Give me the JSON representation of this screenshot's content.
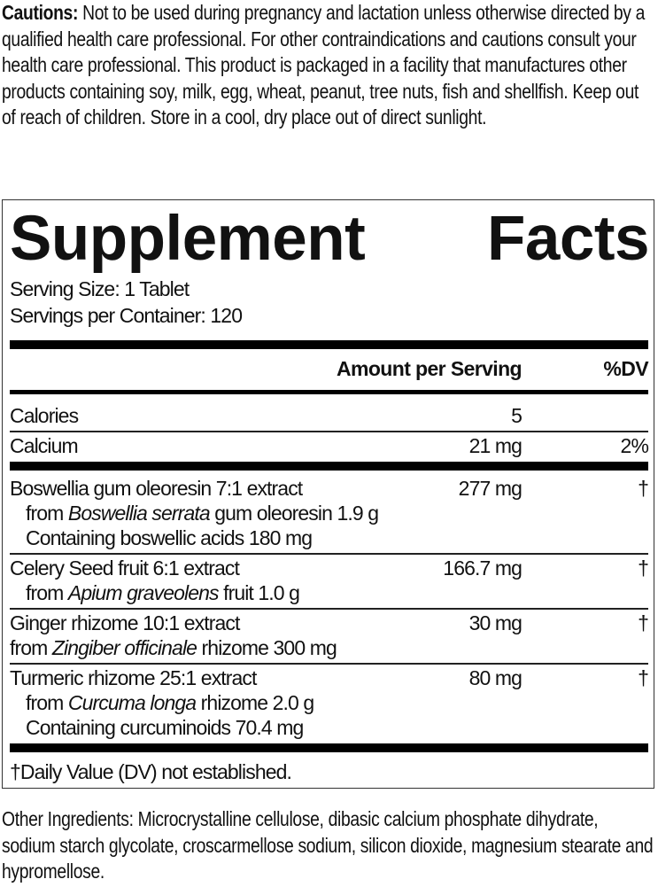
{
  "cautions": {
    "label": "Cautions:",
    "text": " Not to be used during pregnancy and lactation unless otherwise directed by a qualified health care professional. For other contraindications and cautions consult your health care professional. This product is packaged in a facility that manufactures other products containing soy, milk, egg, wheat, peanut, tree nuts, fish and shellfish. Keep out of reach of children. Store in a cool, dry place out of direct sunlight."
  },
  "facts": {
    "title_word1": "Supplement",
    "title_word2": "Facts",
    "serving_size": "Serving Size: 1 Tablet",
    "servings_per_container": "Servings per Container: 120",
    "header_amount": "Amount per Serving",
    "header_dv": "%DV",
    "calories": {
      "name": "Calories",
      "amount": "5",
      "dv": ""
    },
    "calcium": {
      "name": "Calcium",
      "amount": "21 mg",
      "dv": "2%"
    },
    "boswellia": {
      "name": "Boswellia gum oleoresin 7:1 extract",
      "amount": "277 mg",
      "dv": "†",
      "sub1_pre": "from ",
      "sub1_it": "Boswellia serrata",
      "sub1_post": " gum oleoresin 1.9 g",
      "sub2": "Containing boswellic acids 180 mg"
    },
    "celery": {
      "name": "Celery Seed fruit 6:1 extract",
      "amount": "166.7 mg",
      "dv": "†",
      "sub1_pre": "from ",
      "sub1_it": "Apium graveolens",
      "sub1_post": " fruit 1.0 g"
    },
    "ginger": {
      "name": "Ginger rhizome 10:1 extract",
      "amount": "30 mg",
      "dv": "†",
      "sub1_pre": "from ",
      "sub1_it": "Zingiber officinale",
      "sub1_post": " rhizome 300 mg"
    },
    "turmeric": {
      "name": "Turmeric rhizome 25:1 extract",
      "amount": "80 mg",
      "dv": "†",
      "sub1_pre": "from ",
      "sub1_it": "Curcuma longa",
      "sub1_post": " rhizome 2.0 g",
      "sub2": "Containing curcuminoids 70.4 mg"
    },
    "footnote": "†Daily Value (DV) not established."
  },
  "other_ingredients": "Other Ingredients: Microcrystalline cellulose, dibasic calcium phosphate dihydrate, sodium starch glycolate, croscarmellose sodium, silicon dioxide, magnesium stearate and hypromellose."
}
